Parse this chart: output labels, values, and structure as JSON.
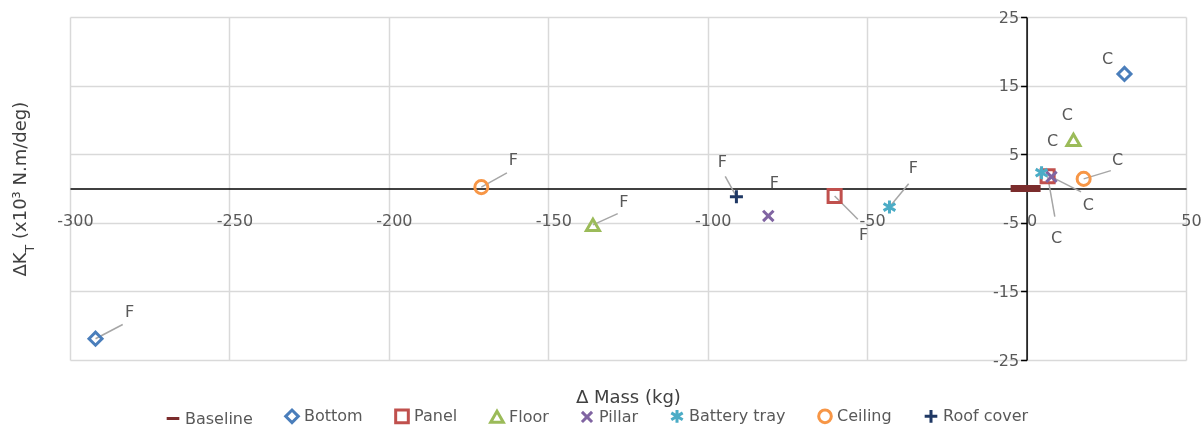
{
  "chart_data": {
    "type": "scatter",
    "xlabel": "∆ Mass (kg)",
    "ylabel": "∆K$_{T}$ (x10³ N.m/deg)",
    "xlim": [
      -300,
      50
    ],
    "xticks": [
      -300,
      -250,
      -200,
      -150,
      -100,
      -50,
      0,
      50
    ],
    "ylim": [
      -25,
      25
    ],
    "yticks": [
      25,
      15,
      5,
      -5,
      -15,
      -25
    ],
    "grid": true,
    "legend": "bottom",
    "series": [
      {
        "name": "Baseline",
        "type": "line",
        "color": "#7b2c2c",
        "marker": "none",
        "x": [
          -5,
          4.4
        ],
        "values": [
          0,
          0
        ]
      },
      {
        "name": "Bottom",
        "color": "#4a7ebb",
        "marker": "diamond",
        "x": [
          -292,
          30.7
        ],
        "values": [
          -21.9,
          16.7
        ]
      },
      {
        "name": "Panel",
        "color": "#c0504d",
        "marker": "square",
        "x": [
          -60.2,
          6.6
        ],
        "values": [
          -1.1,
          1.8
        ]
      },
      {
        "name": "Floor",
        "color": "#9bbb59",
        "marker": "triangle",
        "x": [
          -136,
          14.7
        ],
        "values": [
          -5.3,
          7.1
        ]
      },
      {
        "name": "Pillar",
        "color": "#8064a2",
        "marker": "x",
        "x": [
          -81,
          7.8
        ],
        "values": [
          -4.0,
          1.7
        ]
      },
      {
        "name": "Battery tray",
        "color": "#4bacc6",
        "marker": "cross",
        "x": [
          -43,
          4.7
        ],
        "values": [
          -2.7,
          2.3
        ]
      },
      {
        "name": "Ceiling",
        "color": "#f79646",
        "marker": "circle",
        "x": [
          -171,
          17.9
        ],
        "values": [
          0.2,
          1.4
        ]
      },
      {
        "name": "Roof cover",
        "color": "#1f3864",
        "marker": "plus",
        "x": [
          -91
        ],
        "values": [
          -1.2
        ]
      }
    ],
    "annotations": [
      {
        "text": "F",
        "x": -292,
        "y": -21.9
      },
      {
        "text": "F",
        "x": -60.2,
        "y": -1.1
      },
      {
        "text": "F",
        "x": -136,
        "y": -5.3
      },
      {
        "text": "F",
        "x": -81,
        "y": -4.0
      },
      {
        "text": "F",
        "x": -43,
        "y": -2.7
      },
      {
        "text": "F",
        "x": -171,
        "y": 0.2
      },
      {
        "text": "F",
        "x": -91,
        "y": -1.2
      },
      {
        "text": "C",
        "x": 30.7,
        "y": 16.7
      },
      {
        "text": "C",
        "x": 6.6,
        "y": 1.8
      },
      {
        "text": "C",
        "x": 14.7,
        "y": 7.1
      },
      {
        "text": "C",
        "x": 7.8,
        "y": 1.7
      },
      {
        "text": "C",
        "x": 4.7,
        "y": 2.3
      },
      {
        "text": "C",
        "x": 17.9,
        "y": 1.4
      }
    ]
  }
}
